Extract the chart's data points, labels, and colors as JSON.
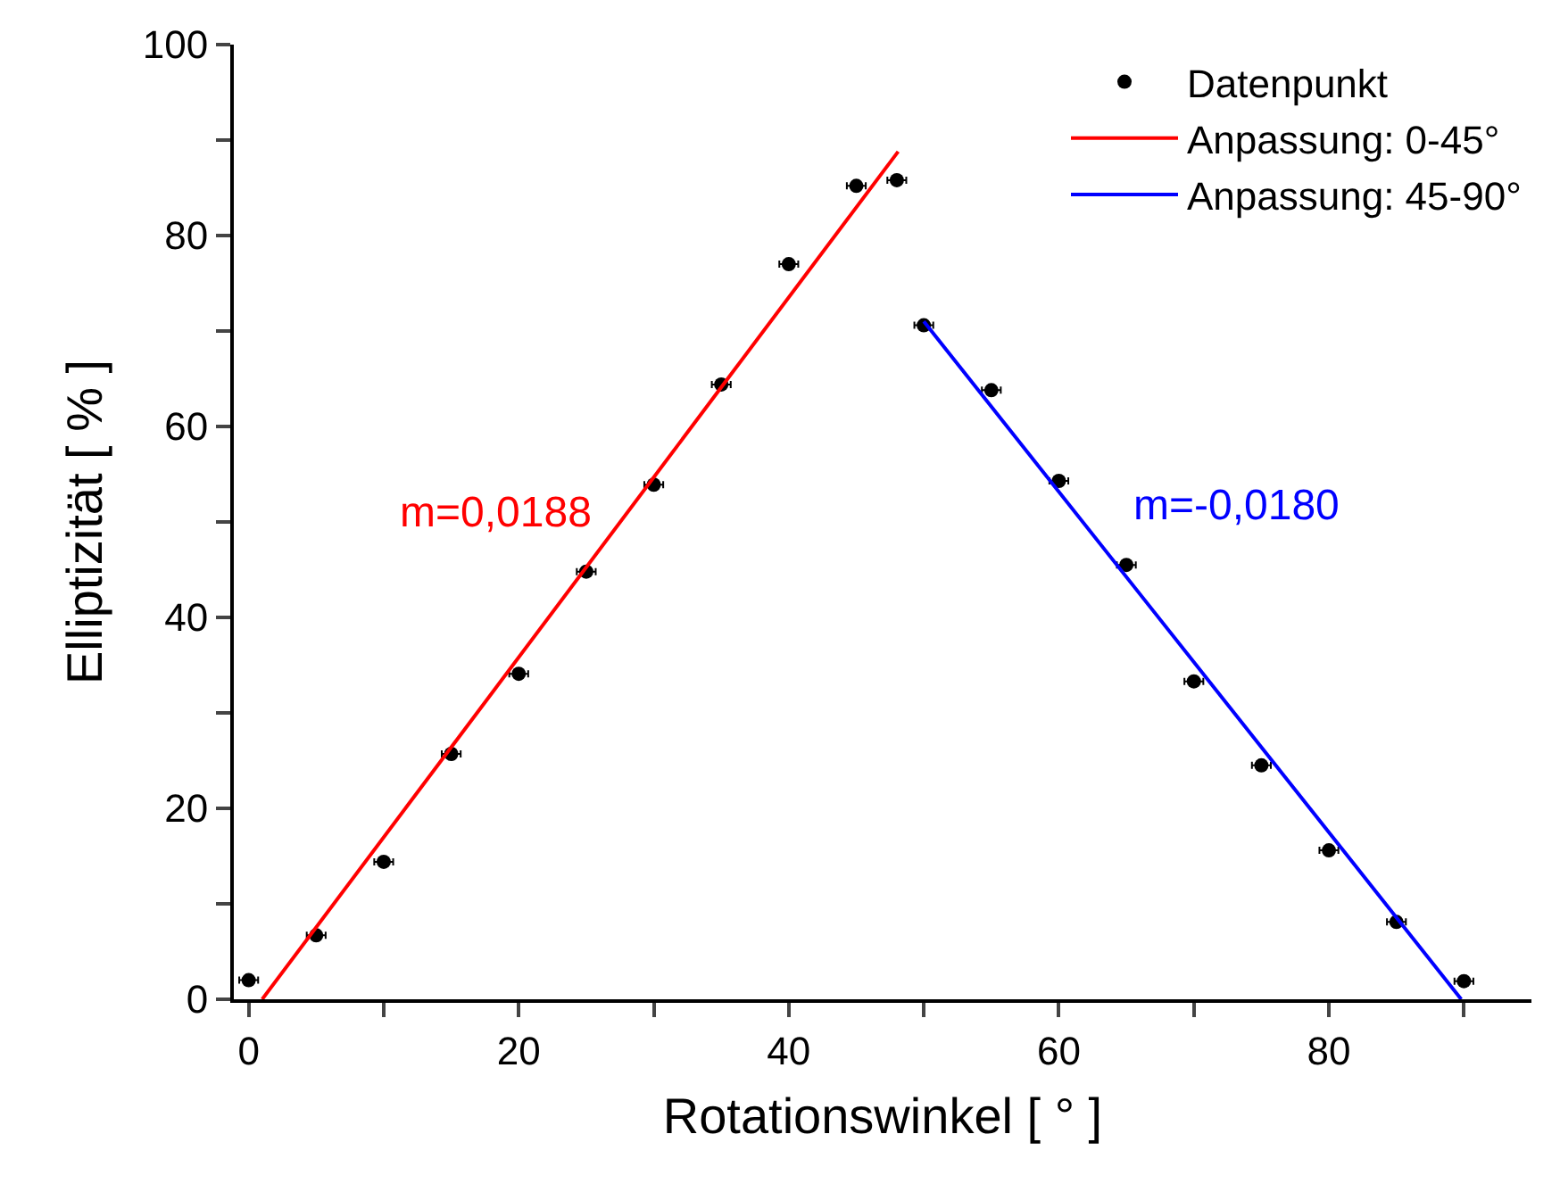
{
  "chart_data": {
    "type": "scatter",
    "xlabel": "Rotationswinkel [ ° ]",
    "ylabel": "Elliptizität [ % ]",
    "xlim": [
      -1.1,
      95
    ],
    "ylim": [
      0,
      100
    ],
    "xticks": [
      0,
      {
        "value": 10,
        "label": null
      },
      20,
      {
        "value": 30,
        "label": null
      },
      40,
      {
        "value": 50,
        "label": null
      },
      60,
      {
        "value": 70,
        "label": null
      },
      80,
      {
        "value": 90,
        "label": null
      }
    ],
    "yticks": [
      0,
      {
        "value": 10,
        "label": null
      },
      20,
      {
        "value": 30,
        "label": null
      },
      40,
      {
        "value": 50,
        "label": null
      },
      60,
      {
        "value": 70,
        "label": null
      },
      80,
      {
        "value": 90,
        "label": null
      },
      100
    ],
    "legend": "top right",
    "series": [
      {
        "name": "Datenpunkt",
        "marker": "circle",
        "color": "#000000",
        "x": [
          0,
          5,
          10,
          15,
          20,
          25,
          30,
          35,
          40,
          45,
          48,
          50,
          55,
          60,
          65,
          70,
          75,
          80,
          85,
          90
        ],
        "values": [
          2.0,
          6.7,
          14.4,
          25.7,
          34.1,
          44.8,
          53.9,
          64.4,
          77.0,
          85.2,
          85.8,
          70.6,
          63.8,
          54.3,
          45.5,
          33.3,
          24.5,
          15.6,
          8.1,
          1.9
        ],
        "xerrors": [
          0.7,
          0.7,
          0.7,
          0.7,
          0.7,
          0.7,
          0.7,
          0.7,
          0.7,
          0.7,
          0.7,
          0.7,
          0.7,
          0.7,
          0.7,
          0.7,
          0.7,
          0.7,
          0.7,
          0.7
        ]
      },
      {
        "name": "Anpassung: 0-45°",
        "type": "line",
        "line_style": "solid",
        "color": "#ff0000",
        "x": [
          1.0,
          48.1
        ],
        "values": [
          0,
          88.8
        ]
      },
      {
        "name": "Anpassung: 45-90°",
        "type": "line",
        "line_style": "solid",
        "color": "#0000ff",
        "x": [
          50.0,
          89.8
        ],
        "values": [
          71.0,
          0
        ]
      }
    ],
    "annotations": [
      "m=0,0188",
      "m=-0,0180"
    ]
  }
}
